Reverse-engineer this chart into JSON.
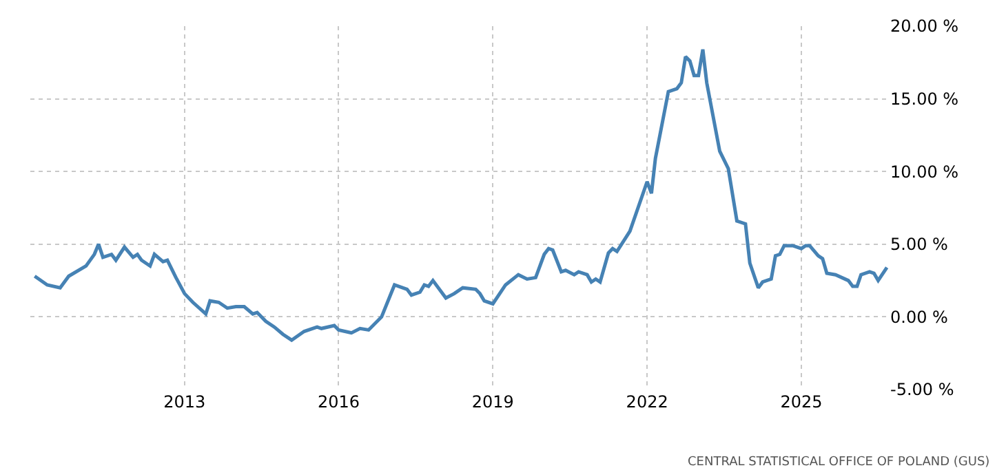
{
  "chart_data": {
    "type": "line",
    "x": [
      "2010-02",
      "2010-05",
      "2010-08",
      "2010-10",
      "2011-02",
      "2011-04",
      "2011-05",
      "2011-06",
      "2011-08",
      "2011-09",
      "2011-11",
      "2012-01",
      "2012-02",
      "2012-03",
      "2012-05",
      "2012-06",
      "2012-08",
      "2012-09",
      "2012-11",
      "2013-01",
      "2013-03",
      "2013-06",
      "2013-07",
      "2013-09",
      "2013-11",
      "2014-01",
      "2014-03",
      "2014-05",
      "2014-06",
      "2014-08",
      "2014-10",
      "2014-12",
      "2015-02",
      "2015-05",
      "2015-08",
      "2015-09",
      "2015-12",
      "2016-01",
      "2016-04",
      "2016-06",
      "2016-08",
      "2016-11",
      "2017-02",
      "2017-05",
      "2017-06",
      "2017-08",
      "2017-09",
      "2017-10",
      "2017-11",
      "2018-02",
      "2018-04",
      "2018-06",
      "2018-09",
      "2018-10",
      "2018-11",
      "2019-01",
      "2019-04",
      "2019-07",
      "2019-09",
      "2019-11",
      "2020-01",
      "2020-02",
      "2020-03",
      "2020-05",
      "2020-06",
      "2020-08",
      "2020-09",
      "2020-11",
      "2020-12",
      "2021-01",
      "2021-02",
      "2021-04",
      "2021-05",
      "2021-06",
      "2021-09",
      "2022-01",
      "2022-02",
      "2022-03",
      "2022-06",
      "2022-08",
      "2022-09",
      "2022-10",
      "2022-11",
      "2022-12",
      "2023-01",
      "2023-02",
      "2023-03",
      "2023-06",
      "2023-08",
      "2023-10",
      "2023-12",
      "2024-01",
      "2024-03",
      "2024-04",
      "2024-06",
      "2024-07",
      "2024-08",
      "2024-09",
      "2024-11",
      "2025-01",
      "2025-02",
      "2025-03",
      "2025-05",
      "2025-06",
      "2025-07",
      "2025-09",
      "2025-12",
      "2026-01",
      "2026-02",
      "2026-03",
      "2026-05",
      "2026-06",
      "2026-07",
      "2026-09"
    ],
    "series": [
      {
        "color": "#4682b4",
        "values": [
          2.8,
          2.2,
          2.0,
          2.8,
          3.5,
          4.3,
          5.0,
          4.1,
          4.3,
          3.9,
          4.8,
          4.1,
          4.3,
          3.9,
          3.5,
          4.3,
          3.8,
          3.9,
          2.7,
          1.6,
          1.0,
          0.2,
          1.1,
          1.0,
          0.6,
          0.7,
          0.7,
          0.2,
          0.3,
          -0.3,
          -0.7,
          -1.2,
          -1.6,
          -1.0,
          -0.7,
          -0.8,
          -0.6,
          -0.9,
          -1.1,
          -0.8,
          -0.9,
          0.0,
          2.2,
          1.9,
          1.5,
          1.7,
          2.2,
          2.1,
          2.5,
          1.3,
          1.6,
          2.0,
          1.9,
          1.6,
          1.1,
          0.9,
          2.2,
          2.9,
          2.6,
          2.7,
          4.3,
          4.7,
          4.6,
          3.1,
          3.2,
          2.9,
          3.1,
          2.9,
          2.4,
          2.6,
          2.4,
          4.4,
          4.7,
          4.5,
          5.9,
          9.3,
          8.5,
          10.9,
          15.5,
          15.7,
          16.1,
          17.9,
          17.6,
          16.6,
          16.6,
          18.4,
          16.1,
          11.4,
          10.2,
          6.6,
          6.4,
          3.7,
          2.0,
          2.4,
          2.6,
          4.2,
          4.3,
          4.9,
          4.9,
          4.7,
          4.9,
          4.9,
          4.2,
          4.0,
          3.0,
          2.9,
          2.5,
          2.1,
          2.1,
          2.9,
          3.1,
          3.0,
          2.5,
          3.4
        ]
      }
    ],
    "xlim": [
      "2010-01",
      "2026-09-15"
    ],
    "xticks": [
      "2013",
      "2016",
      "2019",
      "2022",
      "2025"
    ],
    "ylim": [
      -5,
      20
    ],
    "yticks": [
      {
        "value": -5,
        "label": "-5.00 %"
      },
      {
        "value": 0,
        "label": "0.00 %"
      },
      {
        "value": 5,
        "label": "5.00 %"
      },
      {
        "value": 10,
        "label": "10.00 %"
      },
      {
        "value": 15,
        "label": "15.00 %"
      },
      {
        "value": 20,
        "label": "20.00 %"
      }
    ],
    "grid": true,
    "line_style": "solid",
    "marker": "none",
    "annotations": [
      "CENTRAL STATISTICAL OFFICE OF POLAND (GUS)"
    ]
  }
}
